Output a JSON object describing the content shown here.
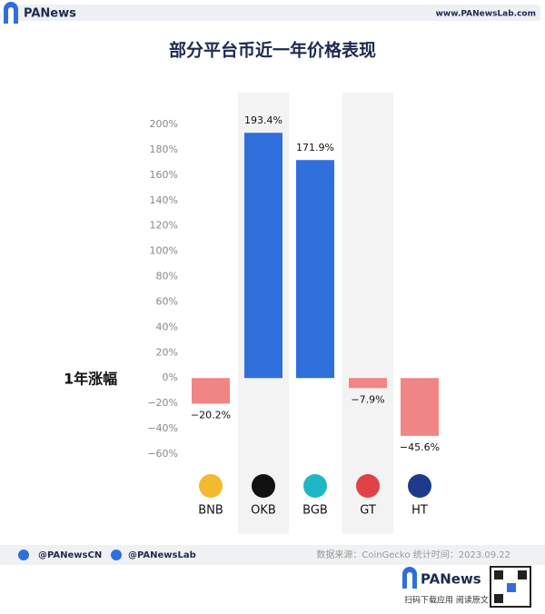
{
  "header": {
    "brand": "PANews",
    "site": "www.PANewsLab.com"
  },
  "chart_data": {
    "type": "bar",
    "title": "部分平台币近一年价格表现",
    "y_label": "1年涨幅",
    "categories": [
      "BNB",
      "OKB",
      "BGB",
      "GT",
      "HT"
    ],
    "values": [
      -20.2,
      193.4,
      171.9,
      -7.9,
      -45.6
    ],
    "value_labels": [
      "−20.2%",
      "193.4%",
      "171.9%",
      "−7.9%",
      "−45.6%"
    ],
    "colors": [
      "#f08585",
      "#2f6fdc",
      "#2f6fdc",
      "#f08585",
      "#f08585"
    ],
    "ylim": [
      -60,
      200
    ],
    "yticks": [
      {
        "value": -60,
        "label": "−60%"
      },
      {
        "value": -40,
        "label": "−40%"
      },
      {
        "value": -20,
        "label": "−20%"
      },
      {
        "value": 0,
        "label": "0%"
      },
      {
        "value": 20,
        "label": "20%"
      },
      {
        "value": 40,
        "label": "40%"
      },
      {
        "value": 60,
        "label": "60%"
      },
      {
        "value": 80,
        "label": "80%"
      },
      {
        "value": 100,
        "label": "100%"
      },
      {
        "value": 120,
        "label": "120%"
      },
      {
        "value": 140,
        "label": "140%"
      },
      {
        "value": 160,
        "label": "160%"
      },
      {
        "value": 180,
        "label": "180%"
      },
      {
        "value": 200,
        "label": "200%"
      }
    ],
    "grid": false
  },
  "footer": {
    "twitter": "@PANewsCN",
    "facebook": "@PANewsLab",
    "source": "数据来源：CoinGecko 统计时间：2023.09.22",
    "brand": "PANews",
    "cta": "扫码下载应用  阅读原文"
  }
}
